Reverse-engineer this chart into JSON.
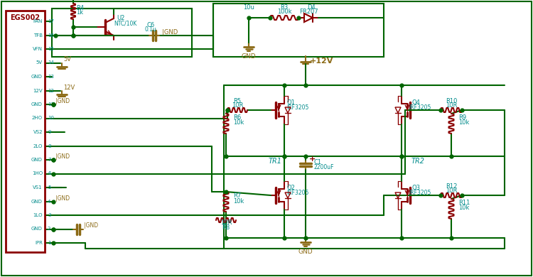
{
  "bg_color": "#ffffff",
  "wire_color": "#006400",
  "comp_color": "#8B0000",
  "label_color": "#008B8B",
  "gnd_color": "#8B6914",
  "egs_pins": [
    "FAN",
    "TFB",
    "VFN",
    "5V",
    "GND",
    "12V",
    "GND",
    "2HO",
    "VS2",
    "2LO",
    "GND",
    "1HO",
    "VS1",
    "GND",
    "1LO",
    "GND",
    "IPR"
  ],
  "egs_pin_nums": [
    17,
    16,
    15,
    14,
    13,
    12,
    11,
    10,
    9,
    8,
    7,
    6,
    5,
    4,
    3,
    2,
    1
  ]
}
